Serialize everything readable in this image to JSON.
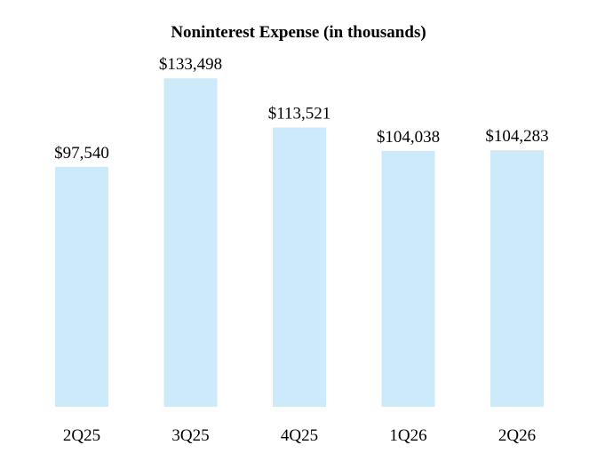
{
  "chart_data": {
    "type": "bar",
    "title": "Noninterest Expense (in thousands)",
    "xlabel": "",
    "ylabel": "",
    "categories": [
      "2Q25",
      "3Q25",
      "4Q25",
      "1Q26",
      "2Q26"
    ],
    "values": [
      97540,
      133498,
      113521,
      104038,
      104283
    ],
    "data_labels": [
      "$97,540",
      "$133,498",
      "$113,521",
      "$104,038",
      "$104,283"
    ],
    "ylim": [
      0,
      135000
    ],
    "grid": false,
    "legend": "none",
    "bar_color": "#cdeafa"
  }
}
